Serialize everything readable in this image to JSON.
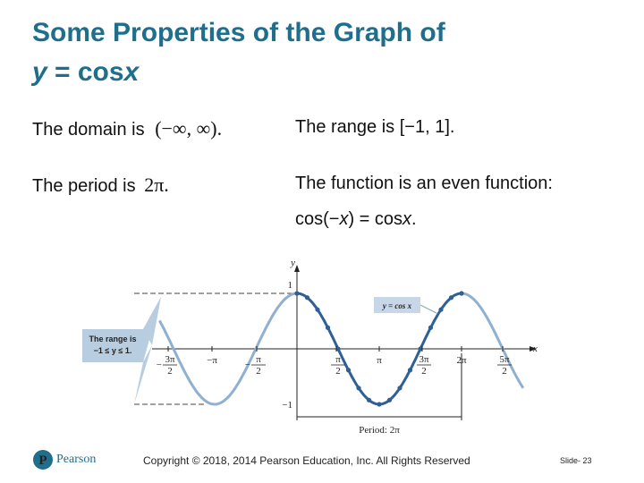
{
  "title": {
    "line1": "Some Properties of the Graph of",
    "var_y": "y",
    "eq": " = cos",
    "var_x": "x"
  },
  "properties": {
    "domain": {
      "text": "The domain is",
      "math": "(−∞, ∞)."
    },
    "range": {
      "text": "The range is [−1, 1]."
    },
    "period": {
      "text": "The period is",
      "math": "2π."
    },
    "even": {
      "text": "The function is an even function:",
      "math_a": "cos(−",
      "math_x": "x",
      "math_b": ") = cos",
      "math_x2": "x",
      "math_c": "."
    }
  },
  "graph": {
    "axis_y": "y",
    "axis_x": "x",
    "label_one": "1",
    "label_minus_one": "−1",
    "x_tick_labels": [
      {
        "sign": "−",
        "num": "3π",
        "den": "2"
      },
      "−π",
      {
        "sign": "−",
        "num": "π",
        "den": "2"
      },
      {
        "num": "π",
        "den": "2"
      },
      "π",
      {
        "num": "3π",
        "den": "2"
      },
      "2π",
      {
        "num": "5π",
        "den": "2"
      }
    ],
    "curve_label": "y = cos x",
    "range_callout": {
      "line1": "The range is",
      "line2": "−1 ≤ y ≤ 1."
    },
    "period_label": "Period: 2π"
  },
  "footer": {
    "brand": "Pearson",
    "copyright": "Copyright © 2018, 2014 Pearson Education, Inc. All Rights Reserved",
    "slide": "Slide- 23"
  }
}
